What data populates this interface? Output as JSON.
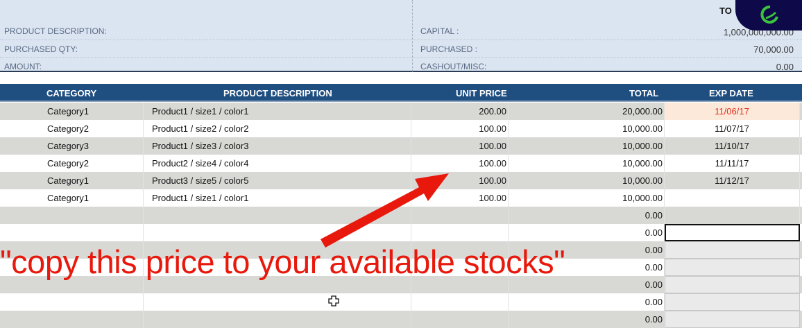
{
  "summary": {
    "left_labels": [
      "PRODUCT DESCRIPTION:",
      "PURCHASED QTY:",
      "AMOUNT:"
    ],
    "right_labels": [
      "CAPITAL :",
      "PURCHASED :",
      "CASHOUT/MISC:"
    ],
    "right_values": [
      "1,000,000,000.00",
      "70,000.00",
      "0.00"
    ],
    "total_label": "TO"
  },
  "table": {
    "headers": [
      "CATEGORY",
      "PRODUCT DESCRIPTION",
      "UNIT PRICE",
      "TOTAL",
      "EXP DATE"
    ],
    "rows": [
      {
        "category": "Category1",
        "product": "Product1 / size1 / color1",
        "unit_price": "200.00",
        "total": "20,000.00",
        "exp": "11/06/17"
      },
      {
        "category": "Category2",
        "product": "Product1 / size2 / color2",
        "unit_price": "100.00",
        "total": "10,000.00",
        "exp": "11/07/17"
      },
      {
        "category": "Category3",
        "product": "Product1 / size3 / color3",
        "unit_price": "100.00",
        "total": "10,000.00",
        "exp": "11/10/17"
      },
      {
        "category": "Category2",
        "product": "Product2 / size4 / color4",
        "unit_price": "100.00",
        "total": "10,000.00",
        "exp": "11/11/17"
      },
      {
        "category": "Category1",
        "product": "Product3 / size5 / color5",
        "unit_price": "100.00",
        "total": "10,000.00",
        "exp": "11/12/17"
      },
      {
        "category": "Category1",
        "product": "Product1 / size1 / color1",
        "unit_price": "100.00",
        "total": "10,000.00",
        "exp": ""
      },
      {
        "category": "",
        "product": "",
        "unit_price": "",
        "total": "0.00",
        "exp": ""
      },
      {
        "category": "",
        "product": "",
        "unit_price": "",
        "total": "0.00",
        "exp": ""
      },
      {
        "category": "",
        "product": "",
        "unit_price": "",
        "total": "0.00",
        "exp": ""
      },
      {
        "category": "",
        "product": "",
        "unit_price": "",
        "total": "0.00",
        "exp": ""
      },
      {
        "category": "",
        "product": "",
        "unit_price": "",
        "total": "0.00",
        "exp": ""
      },
      {
        "category": "",
        "product": "",
        "unit_price": "",
        "total": "0.00",
        "exp": ""
      },
      {
        "category": "",
        "product": "",
        "unit_price": "",
        "total": "0.00",
        "exp": ""
      }
    ]
  },
  "overlay_text": "\"copy this price to your available stocks\"",
  "colors": {
    "header": "#1f4e80",
    "annotation": "#e8190c",
    "highlight_date": "#e0301e"
  }
}
